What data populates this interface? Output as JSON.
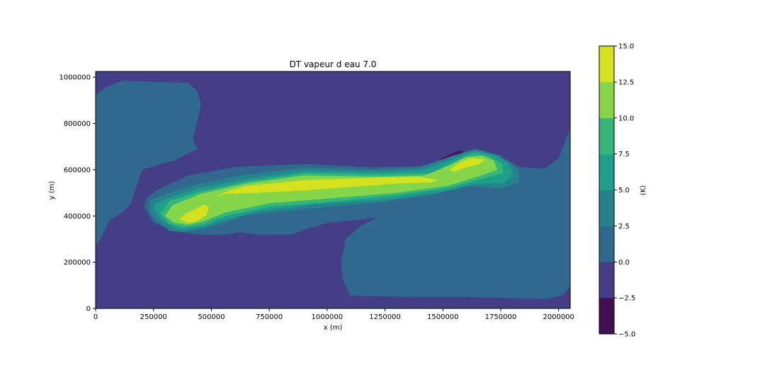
{
  "chart_data": {
    "type": "contourf",
    "title": "DT vapeur d eau 7.0",
    "xlabel": "x (m)",
    "ylabel": "y (m)",
    "xlim": [
      0,
      2050000
    ],
    "ylim": [
      0,
      1025000
    ],
    "xticks": [
      0,
      250000,
      500000,
      750000,
      1000000,
      1250000,
      1500000,
      1750000,
      2000000
    ],
    "xtick_labels": [
      "0",
      "250000",
      "500000",
      "750000",
      "1000000",
      "1250000",
      "1500000",
      "1750000",
      "2000000"
    ],
    "yticks": [
      0,
      200000,
      400000,
      600000,
      800000,
      1000000
    ],
    "ytick_labels": [
      "0",
      "200000",
      "400000",
      "600000",
      "800000",
      "1000000"
    ],
    "colorbar": {
      "label": "(K)",
      "levels": [
        -5.0,
        -2.5,
        0.0,
        2.5,
        5.0,
        7.5,
        10.0,
        12.5,
        15.0
      ],
      "tick_labels": [
        "−5.0",
        "−2.5",
        "0.0",
        "2.5",
        "5.0",
        "7.5",
        "10.0",
        "12.5",
        "15.0"
      ],
      "colors": [
        "#440f56",
        "#433e85",
        "#31688e",
        "#26828e",
        "#1f9e89",
        "#35b779",
        "#85d54a",
        "#d3e11e"
      ]
    },
    "regions": [
      {
        "level": "-5.0 to -2.5",
        "shape": "ellipse",
        "cx": 1520000,
        "cy": 645000,
        "rx": 75000,
        "ry": 14000,
        "rotate": -27
      },
      {
        "level": "-5.0 to -2.5",
        "shape": "dots",
        "points": [
          [
            520000,
            325000
          ],
          [
            555000,
            337000
          ],
          [
            585000,
            352000
          ]
        ]
      },
      {
        "level": "0.0 to 2.5",
        "shape": "polygon",
        "points": [
          [
            0,
            840000
          ],
          [
            0,
            925000
          ],
          [
            50000,
            960000
          ],
          [
            120000,
            985000
          ],
          [
            400000,
            975000
          ],
          [
            440000,
            940000
          ],
          [
            455000,
            880000
          ],
          [
            440000,
            810000
          ],
          [
            420000,
            730000
          ],
          [
            440000,
            690000
          ],
          [
            340000,
            640000
          ],
          [
            200000,
            600000
          ],
          [
            150000,
            450000
          ],
          [
            120000,
            420000
          ],
          [
            60000,
            380000
          ],
          [
            20000,
            300000
          ],
          [
            0,
            270000
          ]
        ]
      },
      {
        "level": "0.0 to 2.5",
        "shape": "polygon",
        "points": [
          [
            1220000,
            395000
          ],
          [
            1110000,
            380000
          ],
          [
            1050000,
            375000
          ],
          [
            1000000,
            370000
          ],
          [
            900000,
            340000
          ],
          [
            850000,
            320000
          ],
          [
            700000,
            320000
          ],
          [
            620000,
            330000
          ],
          [
            550000,
            318000
          ],
          [
            470000,
            318000
          ],
          [
            360000,
            330000
          ],
          [
            250000,
            370000
          ],
          [
            210000,
            440000
          ],
          [
            220000,
            480000
          ],
          [
            280000,
            520000
          ],
          [
            400000,
            575000
          ],
          [
            600000,
            612000
          ],
          [
            900000,
            625000
          ],
          [
            1200000,
            610000
          ],
          [
            1400000,
            615000
          ],
          [
            1530000,
            650000
          ],
          [
            1640000,
            690000
          ],
          [
            1730000,
            665000
          ],
          [
            1800000,
            630000
          ],
          [
            1830000,
            612000
          ],
          [
            1940000,
            605000
          ],
          [
            2000000,
            650000
          ],
          [
            2050000,
            780000
          ],
          [
            2050000,
            95000
          ],
          [
            2020000,
            60000
          ],
          [
            1950000,
            40000
          ],
          [
            1600000,
            50000
          ],
          [
            1350000,
            50000
          ],
          [
            1100000,
            55000
          ],
          [
            1070000,
            120000
          ],
          [
            1060000,
            200000
          ],
          [
            1080000,
            300000
          ],
          [
            1150000,
            360000
          ]
        ]
      },
      {
        "level": "2.5 to 5.0",
        "shape": "polygon",
        "points": [
          [
            235000,
            470000
          ],
          [
            230000,
            420000
          ],
          [
            260000,
            380000
          ],
          [
            320000,
            335000
          ],
          [
            380000,
            330000
          ],
          [
            460000,
            345000
          ],
          [
            540000,
            365000
          ],
          [
            640000,
            400000
          ],
          [
            900000,
            430000
          ],
          [
            1200000,
            455000
          ],
          [
            1450000,
            490000
          ],
          [
            1600000,
            530000
          ],
          [
            1760000,
            520000
          ],
          [
            1830000,
            545000
          ],
          [
            1825000,
            600000
          ],
          [
            1750000,
            660000
          ],
          [
            1640000,
            690000
          ],
          [
            1540000,
            660000
          ],
          [
            1400000,
            610000
          ],
          [
            1200000,
            600000
          ],
          [
            900000,
            610000
          ],
          [
            620000,
            575000
          ],
          [
            450000,
            540000
          ],
          [
            350000,
            510000
          ]
        ]
      },
      {
        "level": "5.0 to 7.5",
        "shape": "polygon",
        "points": [
          [
            250000,
            430000
          ],
          [
            290000,
            375000
          ],
          [
            360000,
            340000
          ],
          [
            460000,
            352000
          ],
          [
            560000,
            385000
          ],
          [
            700000,
            420000
          ],
          [
            950000,
            450000
          ],
          [
            1250000,
            470000
          ],
          [
            1500000,
            505000
          ],
          [
            1650000,
            540000
          ],
          [
            1760000,
            540000
          ],
          [
            1805000,
            575000
          ],
          [
            1785000,
            625000
          ],
          [
            1720000,
            665000
          ],
          [
            1640000,
            680000
          ],
          [
            1550000,
            650000
          ],
          [
            1420000,
            600000
          ],
          [
            1200000,
            590000
          ],
          [
            900000,
            595000
          ],
          [
            650000,
            560000
          ],
          [
            450000,
            520000
          ],
          [
            320000,
            480000
          ],
          [
            260000,
            455000
          ]
        ]
      },
      {
        "level": "7.5 to 10.0",
        "shape": "polygon",
        "points": [
          [
            280000,
            410000
          ],
          [
            320000,
            365000
          ],
          [
            380000,
            350000
          ],
          [
            460000,
            362000
          ],
          [
            560000,
            400000
          ],
          [
            750000,
            440000
          ],
          [
            1000000,
            460000
          ],
          [
            1300000,
            490000
          ],
          [
            1520000,
            520000
          ],
          [
            1670000,
            560000
          ],
          [
            1760000,
            585000
          ],
          [
            1755000,
            625000
          ],
          [
            1700000,
            660000
          ],
          [
            1630000,
            670000
          ],
          [
            1560000,
            640000
          ],
          [
            1450000,
            585000
          ],
          [
            1200000,
            580000
          ],
          [
            900000,
            585000
          ],
          [
            650000,
            548000
          ],
          [
            450000,
            505000
          ],
          [
            320000,
            465000
          ]
        ]
      },
      {
        "level": "10.0 to 12.5",
        "shape": "polygon",
        "points": [
          [
            300000,
            400000
          ],
          [
            340000,
            370000
          ],
          [
            400000,
            362000
          ],
          [
            470000,
            378000
          ],
          [
            560000,
            415000
          ],
          [
            750000,
            455000
          ],
          [
            1000000,
            475000
          ],
          [
            1300000,
            500000
          ],
          [
            1520000,
            530000
          ],
          [
            1650000,
            570000
          ],
          [
            1735000,
            600000
          ],
          [
            1720000,
            640000
          ],
          [
            1670000,
            660000
          ],
          [
            1600000,
            655000
          ],
          [
            1520000,
            615000
          ],
          [
            1420000,
            575000
          ],
          [
            1200000,
            570000
          ],
          [
            900000,
            575000
          ],
          [
            650000,
            540000
          ],
          [
            450000,
            495000
          ],
          [
            330000,
            445000
          ]
        ]
      },
      {
        "level": "12.5 to 15.0",
        "shape": "polygon",
        "points": [
          [
            360000,
            385000
          ],
          [
            400000,
            370000
          ],
          [
            440000,
            378000
          ],
          [
            480000,
            405000
          ],
          [
            490000,
            440000
          ],
          [
            470000,
            450000
          ],
          [
            430000,
            430000
          ],
          [
            390000,
            410000
          ]
        ]
      },
      {
        "level": "12.5 to 15.0",
        "shape": "polygon",
        "points": [
          [
            520000,
            485000
          ],
          [
            560000,
            495000
          ],
          [
            700000,
            500000
          ],
          [
            900000,
            510000
          ],
          [
            1100000,
            525000
          ],
          [
            1300000,
            540000
          ],
          [
            1450000,
            545000
          ],
          [
            1480000,
            555000
          ],
          [
            1400000,
            570000
          ],
          [
            1200000,
            565000
          ],
          [
            900000,
            555000
          ],
          [
            650000,
            530000
          ],
          [
            550000,
            500000
          ]
        ]
      },
      {
        "level": "12.5 to 15.0",
        "shape": "polygon",
        "points": [
          [
            1530000,
            600000
          ],
          [
            1570000,
            630000
          ],
          [
            1620000,
            650000
          ],
          [
            1680000,
            645000
          ],
          [
            1660000,
            625000
          ],
          [
            1600000,
            610000
          ],
          [
            1550000,
            590000
          ]
        ]
      }
    ]
  }
}
